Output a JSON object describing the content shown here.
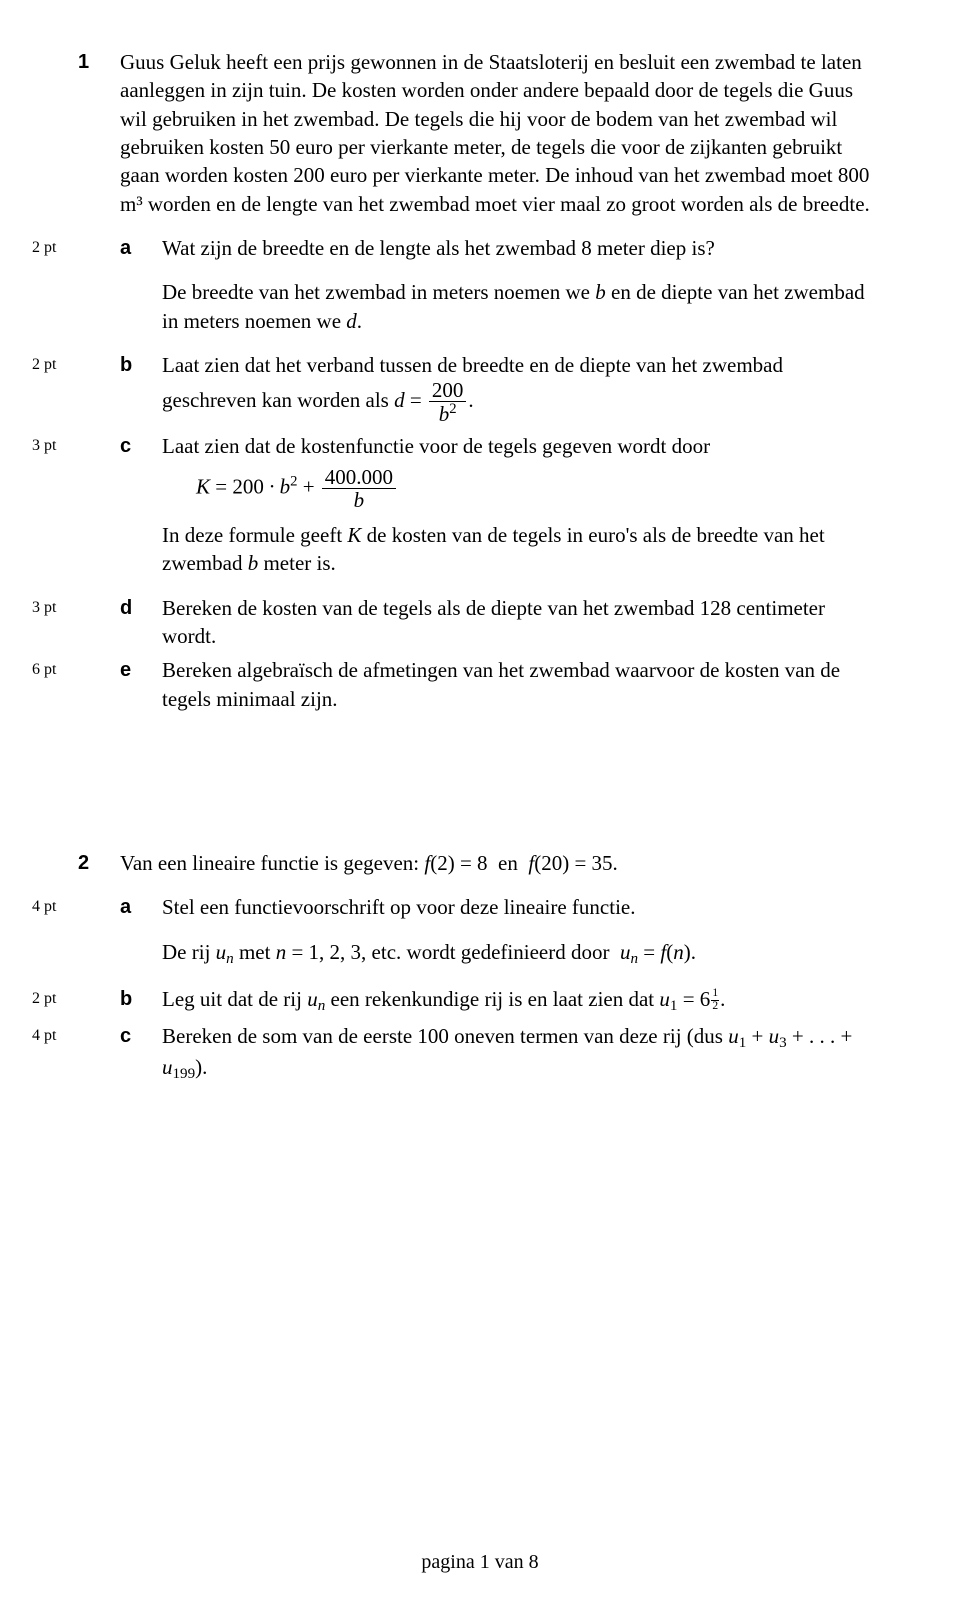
{
  "q1": {
    "number": "1",
    "intro": "Guus Geluk heeft een prijs gewonnen in de Staatsloterij en besluit een zwembad te laten aanleggen in zijn tuin. De kosten worden onder andere bepaald door de tegels die Guus wil gebruiken in het zwembad. De tegels die hij voor de bodem van het zwembad wil gebruiken kosten 50 euro per vierkante meter, de tegels die voor de zijkanten gebruikt gaan worden kosten 200 euro per vierkante meter. De inhoud van het zwembad moet 800 m³ worden en de lengte van het zwembad moet vier maal zo groot worden als de breedte.",
    "a": {
      "pts": "2 pt",
      "label": "a",
      "text": "Wat zijn de breedte en de lengte als het zwembad 8 meter diep is?"
    },
    "after_a": "De breedte van het zwembad in meters noemen we b en de diepte van het zwembad in meters noemen we d.",
    "b": {
      "pts": "2 pt",
      "label": "b",
      "lead": "Laat zien dat het verband tussen de breedte en de diepte van het zwembad geschreven kan worden als ",
      "eq_pre": "d = ",
      "eq_num": "200",
      "eq_den": "b²",
      "tail": "."
    },
    "c": {
      "pts": "3 pt",
      "label": "c",
      "text": "Laat zien dat de kostenfunctie voor de tegels gegeven wordt door",
      "eq_lhs": "K = 200 · b² + ",
      "eq_num": "400.000",
      "eq_den": "b",
      "after": "In deze formule geeft K de kosten van de tegels in euro's als de breedte van het zwembad b meter is."
    },
    "d": {
      "pts": "3 pt",
      "label": "d",
      "text": "Bereken de kosten van de tegels als de diepte van het zwembad 128 centimeter wordt."
    },
    "e": {
      "pts": "6 pt",
      "label": "e",
      "text": "Bereken algebraïsch de afmetingen van het zwembad waarvoor de kosten van de tegels minimaal zijn."
    }
  },
  "q2": {
    "number": "2",
    "intro_pre": "Van een lineaire functie is gegeven:  ",
    "intro_f2": "f(2) = 8",
    "intro_mid": "  en  ",
    "intro_f20": "f(20) = 35.",
    "a": {
      "pts": "4 pt",
      "label": "a",
      "text": "Stel een functievoorschrift op voor deze lineaire functie."
    },
    "after_a_pre": "De rij ",
    "after_a_un": "uₙ",
    "after_a_mid": " met n = 1, 2, 3, etc. wordt gedefinieerd door  ",
    "after_a_def": "uₙ = f(n).",
    "b": {
      "pts": "2 pt",
      "label": "b",
      "pre": "Leg uit dat de rij ",
      "un": "uₙ",
      "mid": " een rekenkundige rij is en laat zien dat  ",
      "u1": "u₁ = 6",
      "half_n": "1",
      "half_d": "2",
      "tail": "."
    },
    "c": {
      "pts": "4 pt",
      "label": "c",
      "pre": "Bereken de som van de eerste 100 oneven termen van deze rij (dus ",
      "sum": "u₁ + u₃ + . . . + u₁₉₉",
      "tail": ")."
    }
  },
  "footer": "pagina 1 van 8"
}
